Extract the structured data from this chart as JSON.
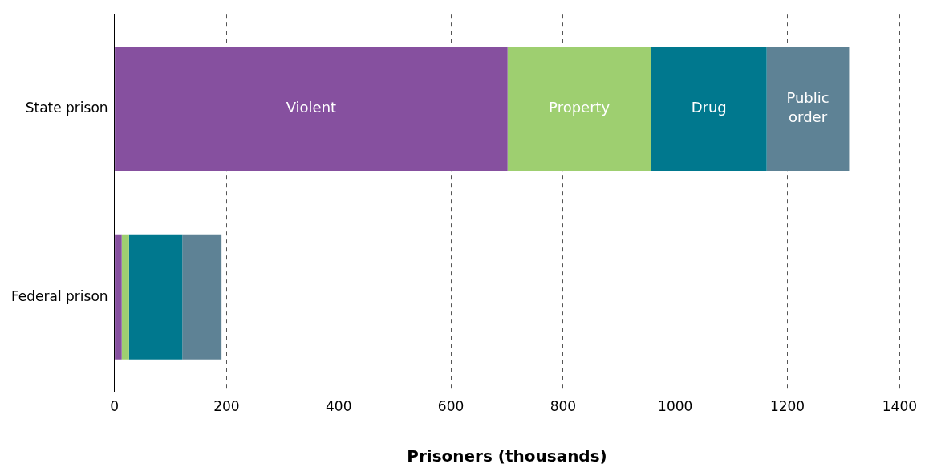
{
  "chart_data": {
    "type": "bar",
    "orientation": "horizontal",
    "stacked": true,
    "categories": [
      "State prison",
      "Federal prison"
    ],
    "series": [
      {
        "name": "Violent",
        "color": "#86509f",
        "values": [
          701,
          13
        ]
      },
      {
        "name": "Property",
        "color": "#9ecf70",
        "values": [
          256,
          13
        ]
      },
      {
        "name": "Drug",
        "color": "#00788e",
        "values": [
          206,
          95
        ]
      },
      {
        "name": "Public order",
        "color": "#5e8295",
        "values": [
          147,
          70
        ]
      }
    ],
    "xlabel": "Prisoners (thousands)",
    "xlim": [
      0,
      1400
    ],
    "xticks": [
      0,
      200,
      400,
      600,
      800,
      1000,
      1200,
      1400
    ],
    "grid": "x",
    "legend": false
  }
}
